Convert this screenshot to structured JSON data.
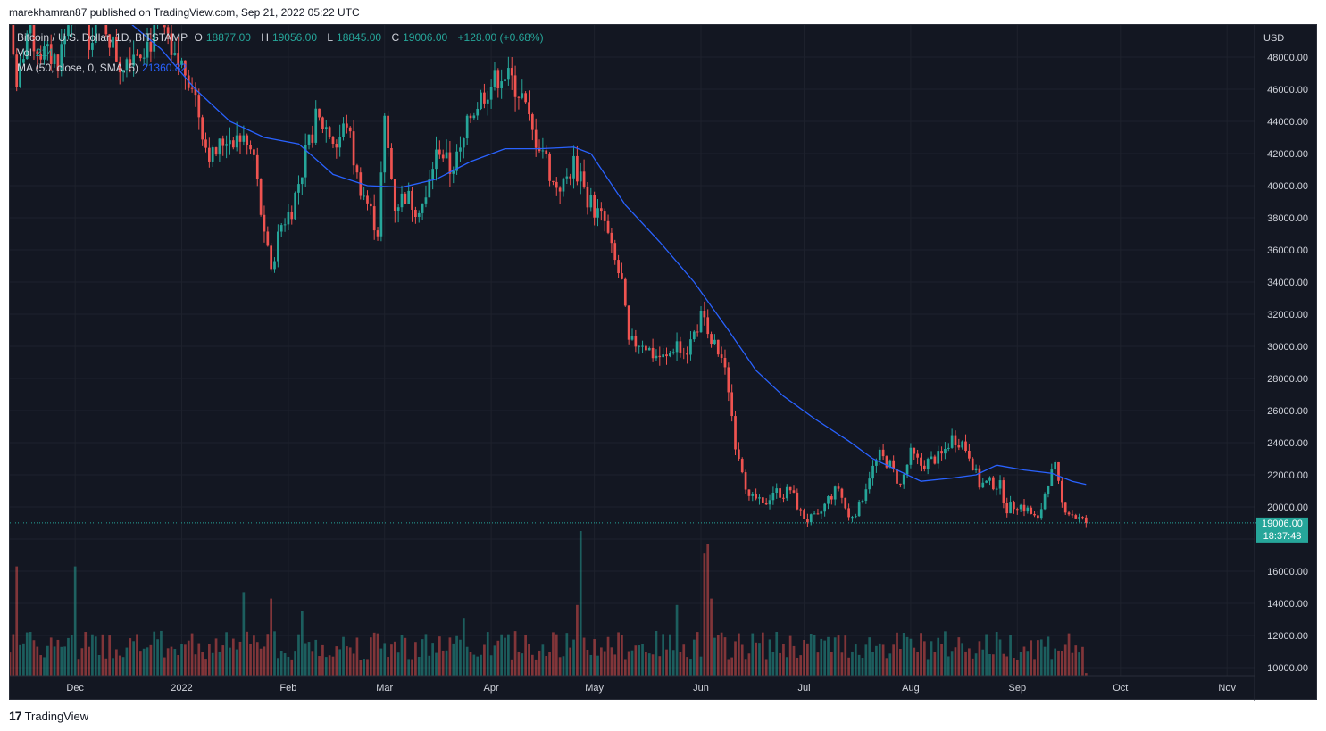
{
  "header": {
    "published": "marekhamran87 published on TradingView.com, Sep 21, 2022 05:22 UTC"
  },
  "legend": {
    "symbol": "Bitcoin / U.S. Dollar, 1D, BITSTAMP",
    "o_label": "O",
    "o": "18877.00",
    "h_label": "H",
    "h": "19056.00",
    "l_label": "L",
    "l": "18845.00",
    "c_label": "C",
    "c": "19006.00",
    "change": "+128.00 (+0.68%)",
    "vol_label": "Vol",
    "vol": "214",
    "ma_label": "MA (50, close, 0, SMA, 5)",
    "ma_value": "21360.82"
  },
  "price_axis": {
    "currency": "USD",
    "price_badge": "19006.00",
    "countdown_badge": "18:37:48"
  },
  "footer": {
    "brand": "TradingView"
  },
  "colors": {
    "bg": "#131722",
    "up": "#26a69a",
    "down": "#ef5350",
    "ma": "#2962ff",
    "text": "#d1d4dc"
  },
  "chart_data": {
    "type": "candlestick",
    "title": "Bitcoin / U.S. Dollar, 1D, BITSTAMP",
    "ylim": [
      9500,
      50000
    ],
    "y_ticks": [
      10000,
      12000,
      14000,
      16000,
      18000,
      20000,
      22000,
      24000,
      26000,
      28000,
      30000,
      32000,
      34000,
      36000,
      38000,
      40000,
      42000,
      44000,
      46000,
      48000
    ],
    "y_tick_labels": [
      "10000.00",
      "12000.00",
      "14000.00",
      "16000.00",
      "",
      "20000.00",
      "22000.00",
      "24000.00",
      "26000.00",
      "28000.00",
      "30000.00",
      "32000.00",
      "34000.00",
      "36000.00",
      "38000.00",
      "40000.00",
      "42000.00",
      "44000.00",
      "46000.00",
      "48000.00"
    ],
    "x_ticks": [
      {
        "label": "Dec",
        "day": 0
      },
      {
        "label": "2022",
        "day": 31
      },
      {
        "label": "Feb",
        "day": 62
      },
      {
        "label": "Mar",
        "day": 90
      },
      {
        "label": "Apr",
        "day": 121
      },
      {
        "label": "May",
        "day": 151
      },
      {
        "label": "Jun",
        "day": 182
      },
      {
        "label": "Jul",
        "day": 212
      },
      {
        "label": "Aug",
        "day": 243
      },
      {
        "label": "Sep",
        "day": 274
      },
      {
        "label": "Oct",
        "day": 304
      },
      {
        "label": "Nov",
        "day": 335
      }
    ],
    "x_range_days": [
      -19,
      343
    ],
    "last_price": 19006,
    "close_series": {
      "start_day": -19,
      "end_day": 294,
      "keypoints": [
        [
          -19,
          50500
        ],
        [
          -17,
          46000
        ],
        [
          -14,
          49500
        ],
        [
          -10,
          48300
        ],
        [
          -5,
          47800
        ],
        [
          -2,
          50100
        ],
        [
          0,
          56500
        ],
        [
          4,
          49300
        ],
        [
          8,
          50500
        ],
        [
          13,
          47500
        ],
        [
          16,
          48300
        ],
        [
          22,
          49000
        ],
        [
          25,
          50600
        ],
        [
          28,
          47700
        ],
        [
          31,
          47500
        ],
        [
          34,
          46500
        ],
        [
          38,
          42500
        ],
        [
          40,
          41800
        ],
        [
          44,
          43000
        ],
        [
          48,
          43000
        ],
        [
          52,
          41800
        ],
        [
          55,
          36600
        ],
        [
          57,
          35000
        ],
        [
          60,
          37600
        ],
        [
          63,
          38600
        ],
        [
          67,
          41800
        ],
        [
          70,
          44100
        ],
        [
          73,
          43600
        ],
        [
          76,
          42500
        ],
        [
          79,
          44000
        ],
        [
          82,
          40500
        ],
        [
          85,
          38900
        ],
        [
          88,
          37200
        ],
        [
          90,
          43900
        ],
        [
          93,
          38800
        ],
        [
          96,
          39400
        ],
        [
          99,
          38700
        ],
        [
          102,
          39000
        ],
        [
          104,
          41300
        ],
        [
          106,
          42400
        ],
        [
          109,
          41000
        ],
        [
          112,
          42000
        ],
        [
          115,
          44400
        ],
        [
          118,
          45500
        ],
        [
          121,
          46300
        ],
        [
          124,
          47000
        ],
        [
          127,
          46500
        ],
        [
          130,
          45500
        ],
        [
          133,
          43200
        ],
        [
          136,
          42300
        ],
        [
          139,
          40100
        ],
        [
          142,
          40000
        ],
        [
          145,
          41400
        ],
        [
          148,
          39700
        ],
        [
          151,
          38500
        ],
        [
          154,
          37700
        ],
        [
          156,
          35900
        ],
        [
          159,
          33900
        ],
        [
          161,
          30100
        ],
        [
          165,
          30300
        ],
        [
          168,
          29500
        ],
        [
          172,
          29200
        ],
        [
          175,
          30300
        ],
        [
          178,
          29800
        ],
        [
          182,
          31800
        ],
        [
          186,
          30000
        ],
        [
          188,
          29300
        ],
        [
          190,
          27400
        ],
        [
          192,
          24000
        ],
        [
          194,
          22500
        ],
        [
          196,
          20400
        ],
        [
          198,
          20500
        ],
        [
          200,
          20000
        ],
        [
          203,
          21000
        ],
        [
          206,
          20800
        ],
        [
          208,
          21100
        ],
        [
          211,
          19600
        ],
        [
          213,
          19200
        ],
        [
          216,
          19300
        ],
        [
          219,
          20500
        ],
        [
          222,
          21200
        ],
        [
          225,
          19300
        ],
        [
          228,
          20000
        ],
        [
          231,
          22000
        ],
        [
          234,
          23200
        ],
        [
          237,
          22600
        ],
        [
          240,
          21300
        ],
        [
          243,
          23300
        ],
        [
          246,
          22600
        ],
        [
          249,
          22900
        ],
        [
          252,
          23200
        ],
        [
          255,
          24300
        ],
        [
          258,
          24000
        ],
        [
          260,
          23300
        ],
        [
          263,
          21400
        ],
        [
          266,
          21500
        ],
        [
          269,
          21300
        ],
        [
          271,
          19900
        ],
        [
          274,
          20200
        ],
        [
          277,
          19800
        ],
        [
          280,
          19100
        ],
        [
          283,
          21700
        ],
        [
          285,
          22400
        ],
        [
          287,
          20200
        ],
        [
          289,
          19700
        ],
        [
          291,
          19400
        ],
        [
          294,
          19006
        ]
      ]
    },
    "ma_series": {
      "name": "MA (50, close, 0, SMA, 5)",
      "keypoints": [
        [
          -10,
          55000
        ],
        [
          5,
          53000
        ],
        [
          15,
          50300
        ],
        [
          25,
          48500
        ],
        [
          35,
          46000
        ],
        [
          45,
          44000
        ],
        [
          55,
          43000
        ],
        [
          65,
          42600
        ],
        [
          75,
          40700
        ],
        [
          85,
          40000
        ],
        [
          95,
          39900
        ],
        [
          105,
          40400
        ],
        [
          115,
          41500
        ],
        [
          125,
          42300
        ],
        [
          135,
          42300
        ],
        [
          145,
          42400
        ],
        [
          150,
          42000
        ],
        [
          160,
          38800
        ],
        [
          170,
          36500
        ],
        [
          180,
          34000
        ],
        [
          190,
          31000
        ],
        [
          198,
          28500
        ],
        [
          206,
          26900
        ],
        [
          215,
          25500
        ],
        [
          225,
          24100
        ],
        [
          232,
          23000
        ],
        [
          240,
          22200
        ],
        [
          246,
          21600
        ],
        [
          255,
          21800
        ],
        [
          262,
          22000
        ],
        [
          268,
          22600
        ],
        [
          276,
          22300
        ],
        [
          284,
          22100
        ],
        [
          290,
          21600
        ],
        [
          294,
          21400
        ]
      ]
    },
    "volume": {
      "name": "Vol",
      "ylim": [
        0,
        2500
      ],
      "spikes": [
        [
          -17,
          1700
        ],
        [
          0,
          1700
        ],
        [
          49,
          1300
        ],
        [
          57,
          1200
        ],
        [
          66,
          1000
        ],
        [
          113,
          900
        ],
        [
          146,
          1100
        ],
        [
          147,
          2250
        ],
        [
          175,
          1100
        ],
        [
          183,
          1900
        ],
        [
          184,
          2050
        ],
        [
          185,
          1200
        ]
      ]
    }
  }
}
